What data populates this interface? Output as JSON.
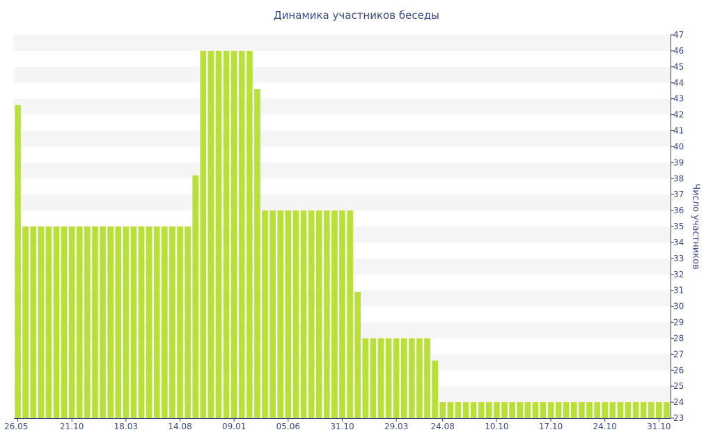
{
  "chart_data": {
    "type": "bar",
    "title": "Динамика участников беседы",
    "xlabel": "",
    "ylabel": "Число участников",
    "ylim": [
      23,
      47
    ],
    "yticks": [
      23,
      24,
      25,
      26,
      27,
      28,
      29,
      30,
      31,
      32,
      33,
      34,
      35,
      36,
      37,
      38,
      39,
      40,
      41,
      42,
      43,
      44,
      45,
      46,
      47
    ],
    "x_tick_labels": [
      "26.05",
      "21.10",
      "18.03",
      "14.08",
      "09.01",
      "05.06",
      "31.10",
      "29.03",
      "24.08",
      "10.10",
      "17.10",
      "24.10",
      "31.10"
    ],
    "x_tick_bar_index": [
      0,
      7,
      14,
      21,
      28,
      35,
      42,
      49,
      55,
      62,
      69,
      76,
      83
    ],
    "values": [
      42.6,
      35,
      35,
      35,
      35,
      35,
      35,
      35,
      35,
      35,
      35,
      35,
      35,
      35,
      35,
      35,
      35,
      35,
      35,
      35,
      35,
      35,
      35,
      38.2,
      46,
      46,
      46,
      46,
      46,
      46,
      46,
      43.6,
      36,
      36,
      36,
      36,
      36,
      36,
      36,
      36,
      36,
      36,
      36,
      36,
      30.9,
      28,
      28,
      28,
      28,
      28,
      28,
      28,
      28,
      28,
      26.6,
      24,
      24,
      24,
      24,
      24,
      24,
      24,
      24,
      24,
      24,
      24,
      24,
      24,
      24,
      24,
      24,
      24,
      24,
      24,
      24,
      24,
      24,
      24,
      24,
      24,
      24,
      24,
      24,
      24,
      24
    ],
    "grid": true,
    "colors": {
      "bar": "#b9e036",
      "band": "#f5f5f5",
      "text": "#3b4a8a",
      "axis": "#2f3d7a"
    }
  }
}
